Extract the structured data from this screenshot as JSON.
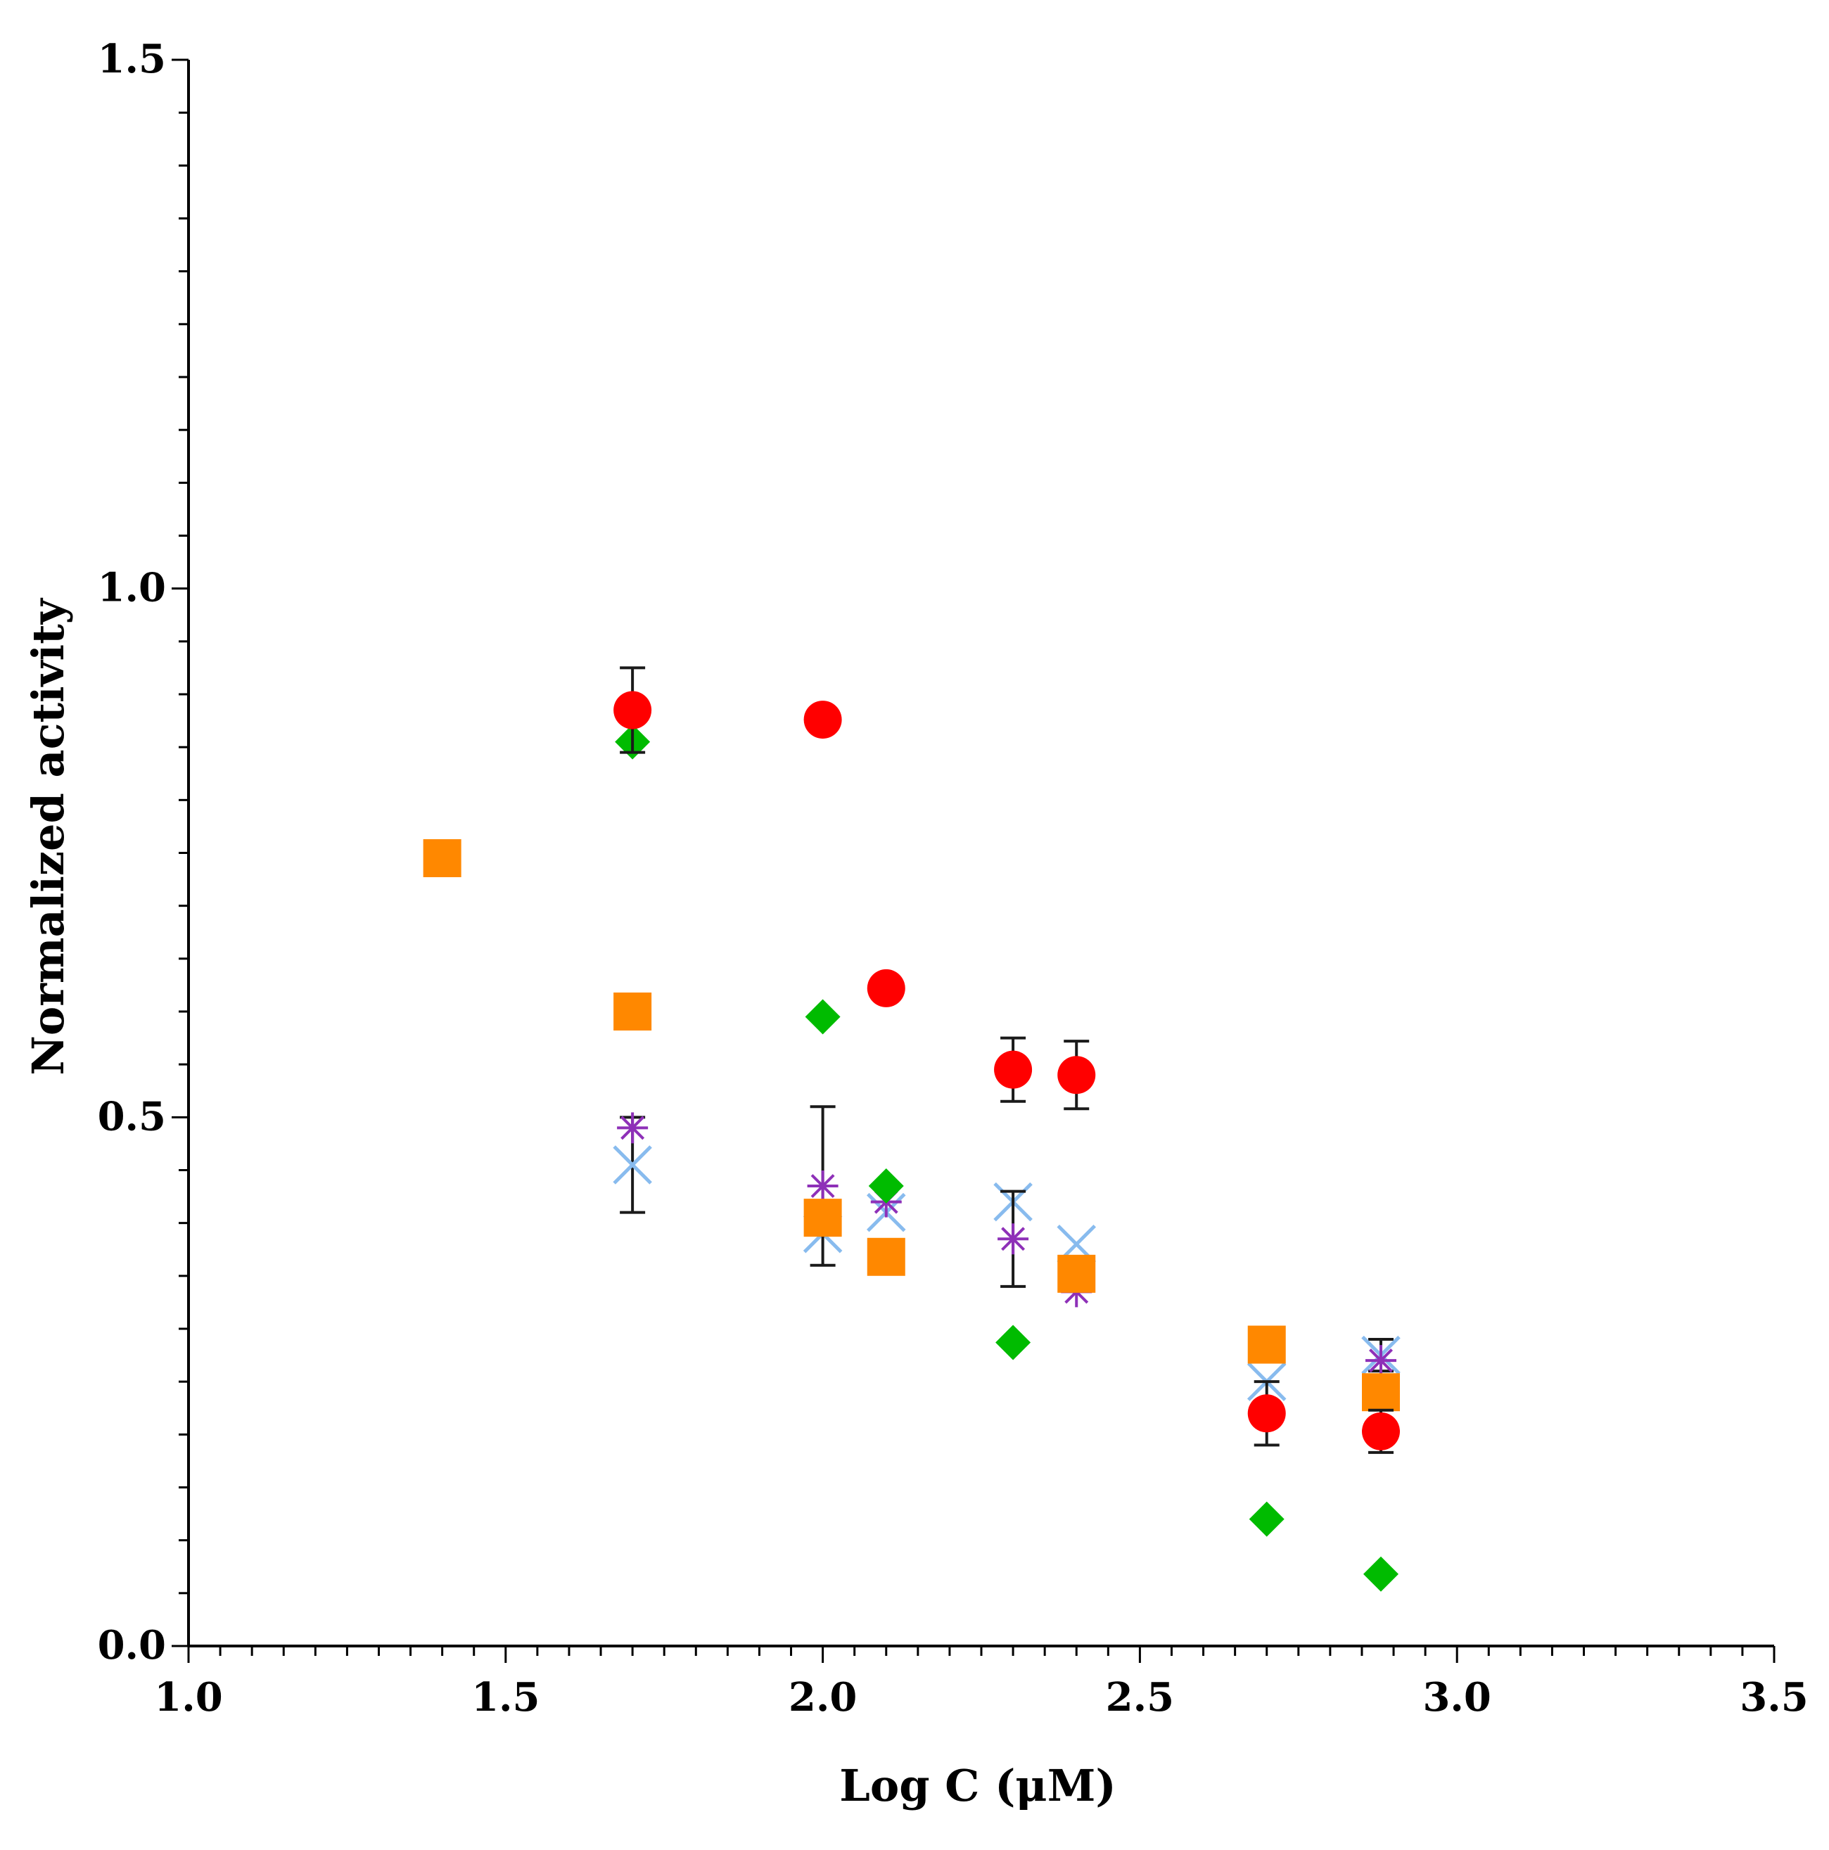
{
  "chart_data": {
    "type": "scatter",
    "title": "",
    "xlabel": "Log C (μM)",
    "ylabel": "Normalized activity",
    "xlim": [
      1.0,
      3.5
    ],
    "ylim": [
      0.0,
      1.5
    ],
    "x_ticks": [
      "1.0",
      "1.5",
      "2.0",
      "2.5",
      "3.0",
      "3.5"
    ],
    "y_ticks": [
      "0.0",
      "0.5",
      "1.0",
      "1.5"
    ],
    "grid": false,
    "legend": "none",
    "series": [
      {
        "name": "red circles",
        "marker": "circle",
        "color": "#ff0000",
        "x": [
          1.7,
          2.0,
          2.1,
          2.3,
          2.4,
          2.7,
          2.88
        ],
        "y": [
          0.885,
          0.876,
          0.622,
          0.545,
          0.54,
          0.22,
          0.203
        ],
        "err": [
          0.04,
          0.0,
          0.0,
          0.03,
          0.032,
          0.03,
          0.02
        ]
      },
      {
        "name": "green diamonds",
        "marker": "diamond",
        "color": "#00bb00",
        "x": [
          1.7,
          2.0,
          2.1,
          2.3,
          2.7,
          2.88
        ],
        "y": [
          0.855,
          0.595,
          0.435,
          0.287,
          0.12,
          0.068
        ],
        "err": [
          0.0,
          0.0,
          0.0,
          0.0,
          0.0,
          0.0
        ]
      },
      {
        "name": "orange squares",
        "marker": "square",
        "color": "#ff8800",
        "x": [
          1.4,
          1.7,
          2.0,
          2.1,
          2.4,
          2.7,
          2.88
        ],
        "y": [
          0.745,
          0.6,
          0.405,
          0.368,
          0.352,
          0.285,
          0.24
        ],
        "err": [
          0.0,
          0.0,
          0.0,
          0.0,
          0.0,
          0.0,
          0.0
        ]
      },
      {
        "name": "purple asterisks",
        "marker": "asterisk",
        "color": "#8e30b8",
        "x": [
          1.7,
          2.0,
          2.1,
          2.3,
          2.4,
          2.88
        ],
        "y": [
          0.49,
          0.435,
          0.42,
          0.385,
          0.335,
          0.27
        ],
        "err": [
          0.0,
          0.075,
          0.0,
          0.045,
          0.0,
          0.0
        ]
      },
      {
        "name": "blue crosses",
        "marker": "x",
        "color": "#88bbee",
        "x": [
          1.7,
          2.0,
          2.1,
          2.3,
          2.4,
          2.7,
          2.88
        ],
        "y": [
          0.455,
          0.39,
          0.41,
          0.42,
          0.38,
          0.25,
          0.275
        ],
        "err": [
          0.045,
          0.0,
          0.0,
          0.0,
          0.0,
          0.0,
          0.015
        ]
      }
    ]
  }
}
